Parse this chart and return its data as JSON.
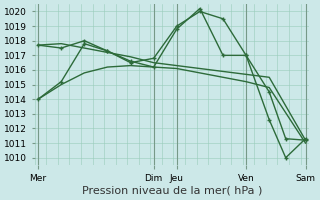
{
  "background_color": "#cce8e8",
  "grid_color": "#99ccbb",
  "line_color": "#2d6b3a",
  "ylim": [
    1009.5,
    1020.5
  ],
  "yticks": [
    1010,
    1011,
    1012,
    1013,
    1014,
    1015,
    1016,
    1017,
    1018,
    1019,
    1020
  ],
  "xlabel": "Pression niveau de la mer( hPa )",
  "xlabel_fontsize": 8,
  "tick_fontsize": 6.5,
  "day_vlines": [
    0,
    35,
    42,
    63,
    81
  ],
  "xlim": [
    -1,
    82
  ],
  "series": [
    {
      "x": [
        0,
        7,
        14,
        21,
        28,
        35,
        42,
        49,
        56,
        63,
        70,
        81
      ],
      "y": [
        1017.7,
        1017.8,
        1017.5,
        1017.2,
        1016.9,
        1016.5,
        1016.3,
        1016.1,
        1015.9,
        1015.7,
        1015.5,
        1011.2
      ],
      "marker": null,
      "linewidth": 1.0
    },
    {
      "x": [
        0,
        7,
        14,
        21,
        28,
        35,
        42,
        49,
        56,
        63,
        70,
        81
      ],
      "y": [
        1014.0,
        1015.0,
        1015.8,
        1016.2,
        1016.3,
        1016.2,
        1016.1,
        1015.8,
        1015.5,
        1015.2,
        1014.8,
        1011.0
      ],
      "marker": null,
      "linewidth": 1.0
    },
    {
      "x": [
        0,
        7,
        14,
        21,
        28,
        35,
        42,
        49,
        56,
        63,
        70,
        75,
        81
      ],
      "y": [
        1017.7,
        1017.5,
        1018.0,
        1017.3,
        1016.5,
        1016.8,
        1019.0,
        1020.0,
        1019.5,
        1017.0,
        1014.5,
        1011.3,
        1011.2
      ],
      "marker": "+",
      "markersize": 3.5,
      "linewidth": 1.0
    },
    {
      "x": [
        0,
        7,
        14,
        21,
        28,
        35,
        42,
        49,
        56,
        63,
        70,
        75,
        81
      ],
      "y": [
        1014.0,
        1015.2,
        1017.8,
        1017.3,
        1016.6,
        1016.2,
        1018.8,
        1020.2,
        1017.0,
        1017.0,
        1012.6,
        1010.0,
        1011.3
      ],
      "marker": "+",
      "markersize": 3.5,
      "linewidth": 1.0
    }
  ],
  "xtick_positions": [
    0,
    35,
    42,
    63,
    81
  ],
  "xtick_labels": [
    "Mer",
    "Dim",
    "Jeu",
    "Ven",
    "Sam"
  ]
}
